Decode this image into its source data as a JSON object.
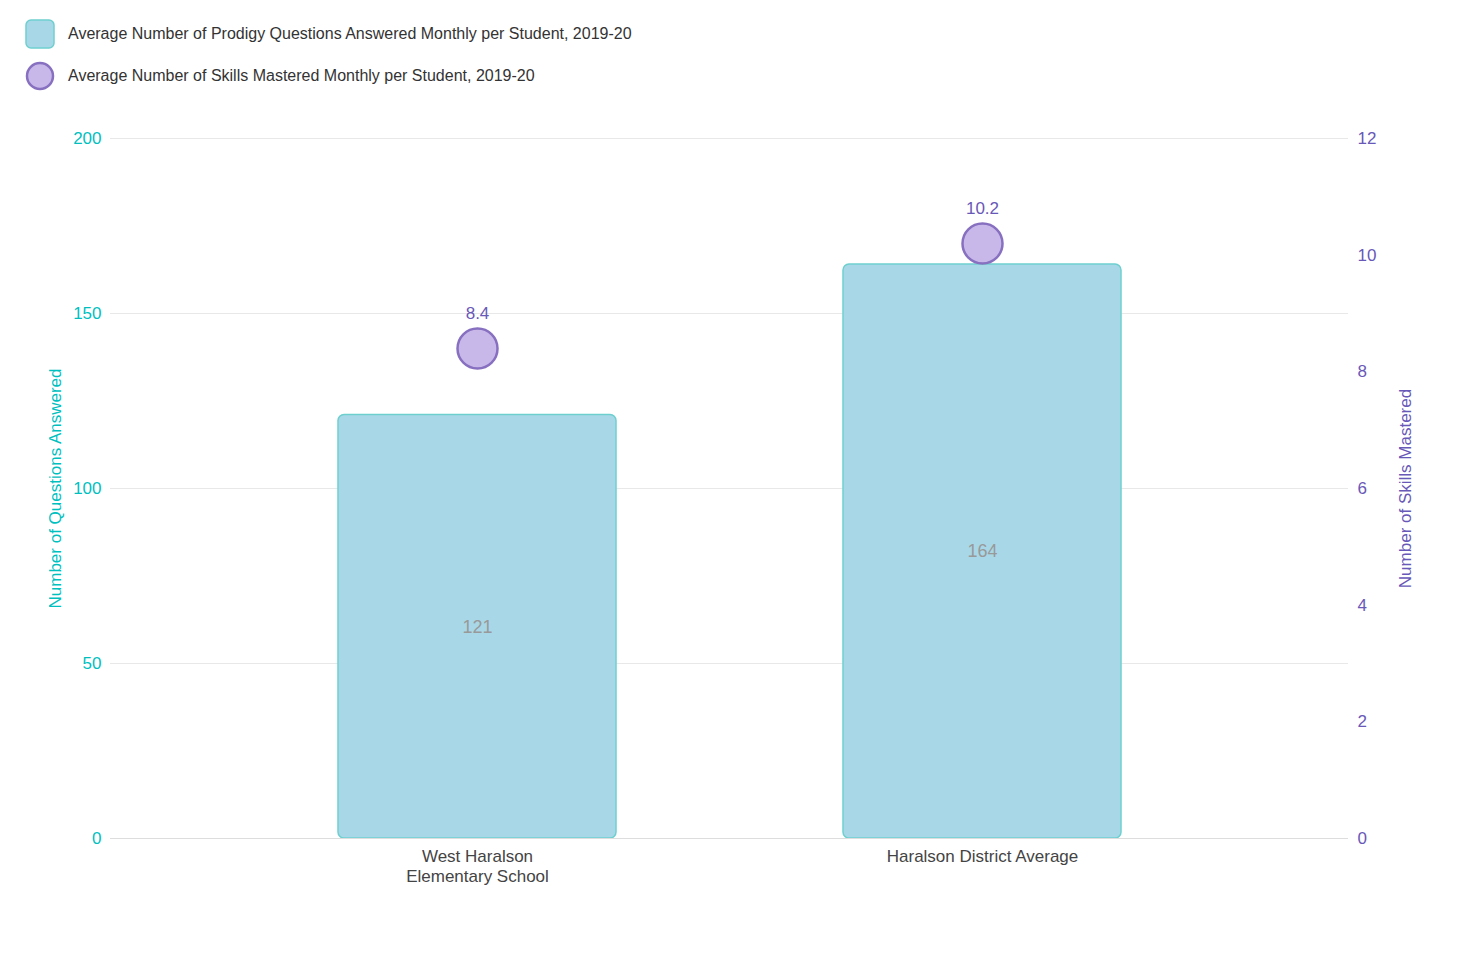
{
  "chart_data": {
    "type": "bar",
    "categories": [
      "West Haralson\nElementary School",
      "Haralson District Average"
    ],
    "series": [
      {
        "name": "Average Number of Prodigy Questions Answered Monthly per Student, 2019-20",
        "type": "bar",
        "color": "#A8D8E8",
        "values": [
          121,
          164
        ]
      },
      {
        "name": "Average Number of Skills Mastered Monthly per Student, 2019-20",
        "type": "scatter",
        "axis": "y2",
        "marker": "circle",
        "color": "#C8B8EA",
        "values": [
          8.4,
          10.2
        ]
      }
    ],
    "ylabel": "Number of Questions Answered",
    "y2label": "Number of Skills Mastered",
    "ylim": [
      0,
      200
    ],
    "yticks": [
      0,
      50,
      100,
      150,
      200
    ],
    "y2lim": [
      0,
      12
    ],
    "y2ticks": [
      0,
      2,
      4,
      6,
      8,
      10,
      12
    ],
    "grid": true,
    "data_labels": true,
    "legend": "upper left"
  }
}
